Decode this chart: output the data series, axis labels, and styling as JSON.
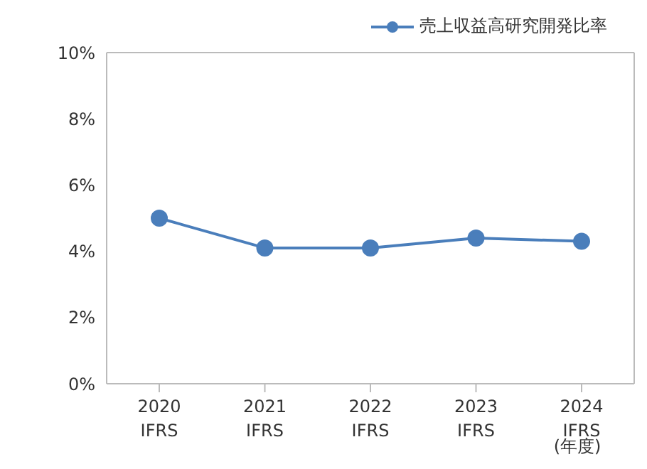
{
  "chart_data": {
    "type": "line",
    "xlabel": "(年度)",
    "categories": [
      "2020\nIFRS",
      "2021\nIFRS",
      "2022\nIFRS",
      "2023\nIFRS",
      "2024\nIFRS"
    ],
    "series": [
      {
        "name": "売上収益高研究開発比率",
        "color": "#4a7ebb",
        "values": [
          5.0,
          4.1,
          4.1,
          4.4,
          4.3
        ]
      }
    ],
    "ylim": [
      0,
      10
    ],
    "yticks": [
      {
        "value": 0,
        "label": "0%"
      },
      {
        "value": 2,
        "label": "2%"
      },
      {
        "value": 4,
        "label": "4%"
      },
      {
        "value": 6,
        "label": "6%"
      },
      {
        "value": 8,
        "label": "8%"
      },
      {
        "value": 10,
        "label": "10%"
      }
    ],
    "grid": false,
    "legend": "top right",
    "marker": "circle",
    "line_style": "solid"
  }
}
